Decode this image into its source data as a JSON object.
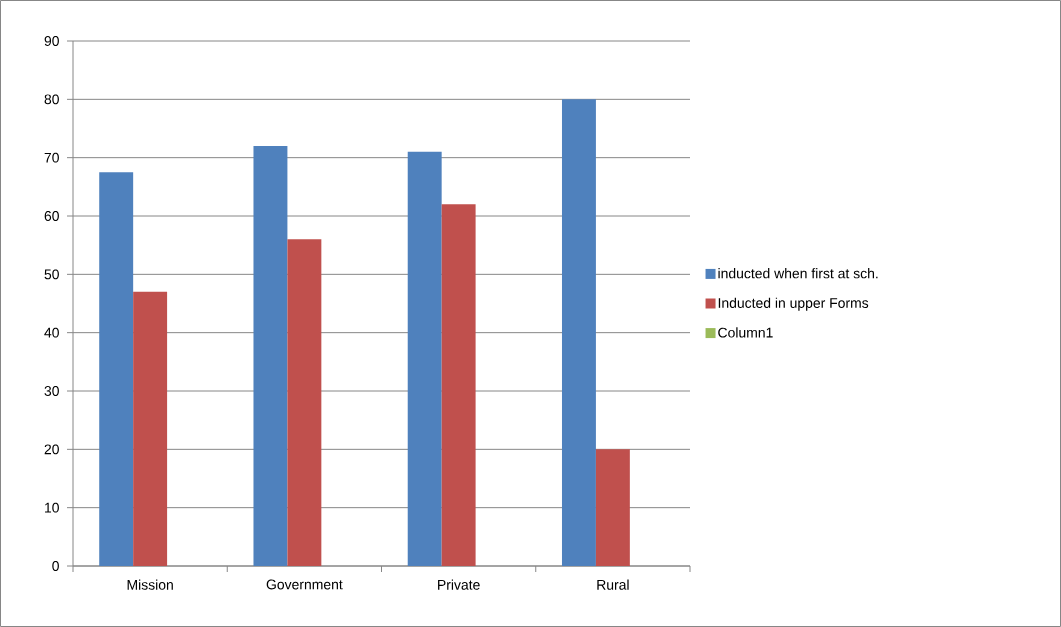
{
  "chart_data": {
    "type": "bar",
    "categories": [
      "Mission",
      "Government",
      "Private",
      "Rural"
    ],
    "series": [
      {
        "name": "inducted when first  at sch.",
        "color": "#4f81bd",
        "values": [
          67.5,
          72,
          71,
          80
        ]
      },
      {
        "name": "Inducted in upper Forms",
        "color": "#c0504d",
        "values": [
          47,
          56,
          62,
          20
        ]
      },
      {
        "name": "Column1",
        "color": "#9bbb59",
        "values": [
          null,
          null,
          null,
          null
        ]
      }
    ],
    "ylim": [
      0,
      90
    ],
    "yticks": [
      0,
      10,
      20,
      30,
      40,
      50,
      60,
      70,
      80,
      90
    ],
    "grid": "y",
    "legend": "right"
  }
}
